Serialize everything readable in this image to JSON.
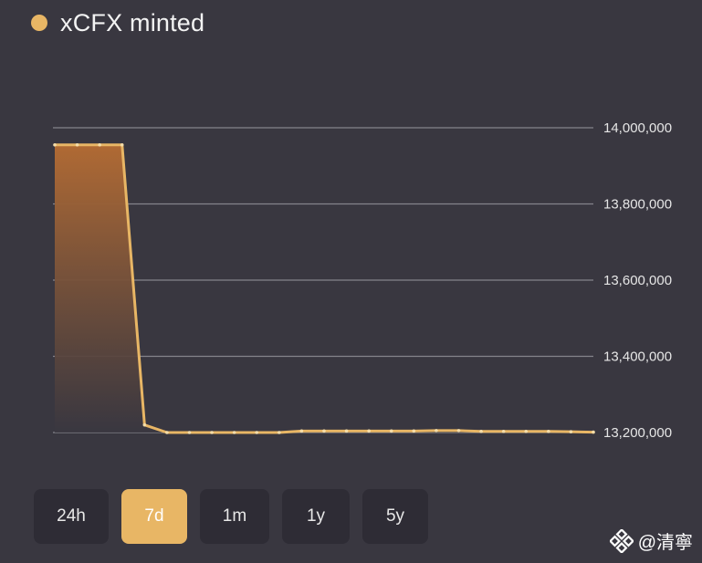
{
  "legend": {
    "label": "xCFX minted",
    "color": "#e8b665"
  },
  "range_selector": {
    "buttons": [
      {
        "label": "24h",
        "active": false
      },
      {
        "label": "7d",
        "active": true
      },
      {
        "label": "1m",
        "active": false
      },
      {
        "label": "1y",
        "active": false
      },
      {
        "label": "5y",
        "active": false
      }
    ]
  },
  "watermark": {
    "text": "@清寧",
    "icon": "binance-logo-icon"
  },
  "colors": {
    "background": "#393740",
    "line": "#e8b665",
    "area_top": "#b06a34",
    "gridline": "#85848b",
    "button_bg": "#2e2c35",
    "button_active_bg": "#e8b665"
  },
  "chart_data": {
    "type": "area",
    "title": "",
    "xlabel": "",
    "ylabel": "",
    "legend": [
      "xCFX minted"
    ],
    "legend_position": "top-left",
    "grid": true,
    "y_axis_position": "right",
    "ylim": [
      13200000,
      14000000
    ],
    "y_ticks": [
      13200000,
      13400000,
      13600000,
      13800000,
      14000000
    ],
    "y_tick_labels": [
      "13,200,000",
      "13,400,000",
      "13,600,000",
      "13,800,000",
      "14,000,000"
    ],
    "series": [
      {
        "name": "xCFX minted",
        "values": [
          13955000,
          13955000,
          13955000,
          13955000,
          13220000,
          13200000,
          13200000,
          13200000,
          13200000,
          13200000,
          13200000,
          13204000,
          13204000,
          13204000,
          13204000,
          13204000,
          13204000,
          13205000,
          13205000,
          13203000,
          13203000,
          13203000,
          13203000,
          13202000,
          13201000
        ]
      }
    ]
  }
}
